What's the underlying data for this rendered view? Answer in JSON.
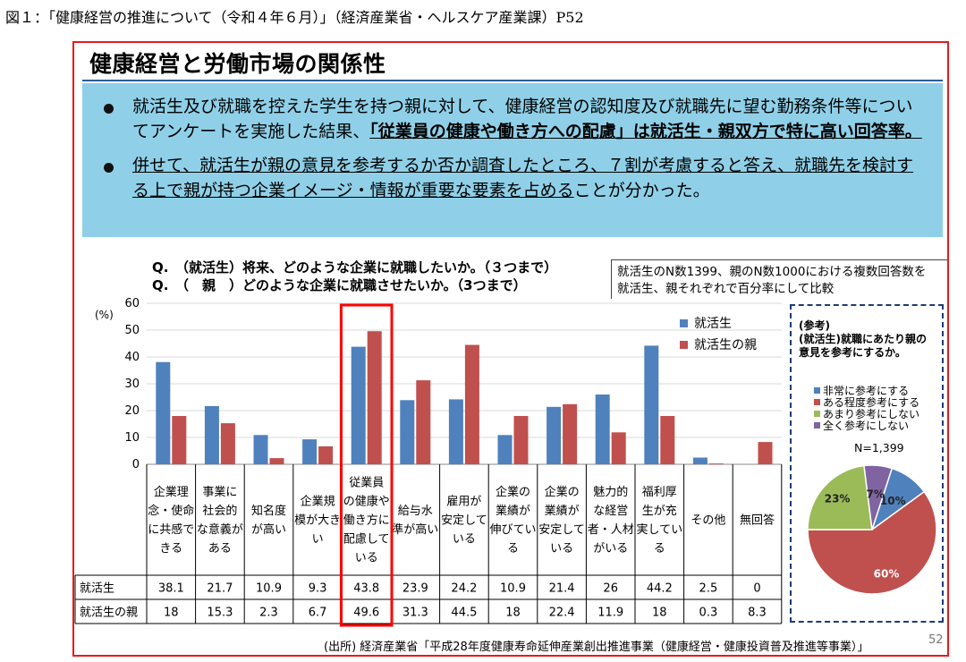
{
  "caption": "図１：「健康経営の推進について（令和４年６月）」（経済産業省・ヘルスケア産業課）P52",
  "slide_title": "健康経営と労働市場の関係性",
  "bullets": {
    "b1_part1": "就活生及び就職を控えた学生を持つ親に対して、健康経営の認知度及び就職先に望む勤務条件等についてアンケートを実施した結果、",
    "b1_part2": "「従業員の健康や働き方への配慮」は就活生・親双方で特に高い回答率。",
    "b2_part1": "併せて、就活生が親の意見を参考するか否か調査したところ、７割が考慮すると答え、就職先を検討する上で親が持つ企業イメージ・情報が重要な要素を占める",
    "b2_part2": "ことが分かった。"
  },
  "question1": "Q.　（就活生）将来、どのような企業に就職したいか。（３つまで）",
  "question2": "Q.　（　親　）どのような企業に就職させたいか。（3つまで）",
  "note_line1": "就活生のN数1399、親のN数1000における複数回答数を",
  "note_line2": "就活生、親それぞれで百分率にして比較",
  "colors": {
    "student": "#4f81bd",
    "parent": "#c0504d",
    "highlight": "#ff0000",
    "summary_bg": "#8fd0e8"
  },
  "chart_data": [
    {
      "type": "bar",
      "ylabel": "(%)",
      "ylim": [
        0,
        60
      ],
      "yticks": [
        0,
        10,
        20,
        30,
        40,
        50,
        60
      ],
      "grid": true,
      "legend_position": "top-right",
      "categories": [
        "企業理念・使命に共感できる",
        "事業に社会的な意義がある",
        "知名度が高い",
        "企業規模が大きい",
        "従業員の健康や働き方に配慮している",
        "給与水準が高い",
        "雇用が安定している",
        "企業の業績が伸びている",
        "企業の業績が安定している",
        "魅力的な経営者・人材がいる",
        "福利厚生が充実している",
        "その他",
        "無回答"
      ],
      "category_lines": [
        [
          "企業理",
          "念・使命",
          "に共感で",
          "きる"
        ],
        [
          "事業に",
          "社会的",
          "な意義が",
          "ある"
        ],
        [
          "知名度",
          "が高い"
        ],
        [
          "企業規",
          "模が大き",
          "い"
        ],
        [
          "従業員",
          "の健康や",
          "働き方に",
          "配慮して",
          "いる"
        ],
        [
          "給与水",
          "準が高い"
        ],
        [
          "雇用が",
          "安定して",
          "いる"
        ],
        [
          "企業の",
          "業績が",
          "伸びてい",
          "る"
        ],
        [
          "企業の",
          "業績が",
          "安定して",
          "いる"
        ],
        [
          "魅力的",
          "な経営",
          "者・人材",
          "がいる"
        ],
        [
          "福利厚",
          "生が充",
          "実してい",
          "る"
        ],
        [
          "その他"
        ],
        [
          "無回答"
        ]
      ],
      "series": [
        {
          "name": "就活生",
          "values": [
            38.1,
            21.7,
            10.9,
            9.3,
            43.8,
            23.9,
            24.2,
            10.9,
            21.4,
            26,
            44.2,
            2.5,
            0
          ]
        },
        {
          "name": "就活生の親",
          "values": [
            18,
            15.3,
            2.3,
            6.7,
            49.6,
            31.3,
            44.5,
            18,
            22.4,
            11.9,
            18,
            0.3,
            8.3
          ]
        }
      ],
      "table_rows": [
        {
          "label": "就活生",
          "cells": [
            "38.1",
            "21.7",
            "10.9",
            "9.3",
            "43.8",
            "23.9",
            "24.2",
            "10.9",
            "21.4",
            "26",
            "44.2",
            "2.5",
            "0"
          ]
        },
        {
          "label": "就活生の親",
          "cells": [
            "18",
            "15.3",
            "2.3",
            "6.7",
            "49.6",
            "31.3",
            "44.5",
            "18",
            "22.4",
            "11.9",
            "18",
            "0.3",
            "8.3"
          ]
        }
      ],
      "highlight_index": 4
    },
    {
      "type": "pie",
      "title_line1": "(参考)",
      "title_line2": "(就活生)就職にあたり親の",
      "title_line3": "意見を参考にするか。",
      "n_label": "N=1,399",
      "slices": [
        {
          "label": "非常に参考にする",
          "value": 10,
          "text": "10%",
          "color": "#4f81bd"
        },
        {
          "label": "ある程度参考にする",
          "value": 60,
          "text": "60%",
          "color": "#c0504d"
        },
        {
          "label": "あまり参考にしない",
          "value": 23,
          "text": "23%",
          "color": "#9bbb59"
        },
        {
          "label": "全く参考にしない",
          "value": 7,
          "text": "7%",
          "color": "#8064a2"
        }
      ]
    }
  ],
  "source": "(出所) 経済産業省「平成28年度健康寿命延伸産業創出推進事業（健康経営・健康投資普及推進等事業）」",
  "page_number": "52"
}
